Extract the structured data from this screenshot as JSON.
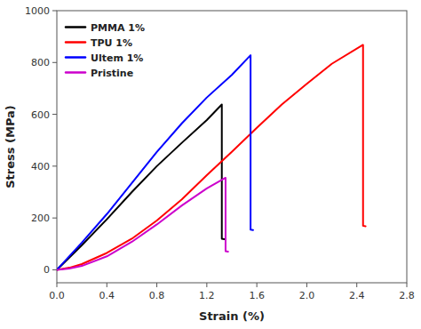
{
  "chart_data": {
    "type": "line",
    "xlabel": "Strain (%)",
    "ylabel": "Stress (MPa)",
    "series": [
      {
        "name": "PMMA 1%",
        "color": "#000000",
        "x": [
          0.0,
          0.2,
          0.4,
          0.6,
          0.8,
          1.0,
          1.2,
          1.32,
          1.32,
          1.34
        ],
        "values": [
          0,
          95,
          195,
          300,
          400,
          490,
          578,
          638,
          120,
          118
        ]
      },
      {
        "name": "TPU 1%",
        "color": "#ff0000",
        "x": [
          0.0,
          0.1,
          0.2,
          0.4,
          0.6,
          0.8,
          1.0,
          1.2,
          1.4,
          1.6,
          1.8,
          2.0,
          2.2,
          2.45,
          2.45,
          2.47
        ],
        "values": [
          0,
          8,
          22,
          65,
          120,
          190,
          272,
          365,
          455,
          548,
          638,
          718,
          795,
          868,
          170,
          168
        ]
      },
      {
        "name": "Ultem 1%",
        "color": "#0000ff",
        "x": [
          0.0,
          0.2,
          0.4,
          0.6,
          0.8,
          1.0,
          1.2,
          1.4,
          1.55,
          1.55,
          1.57
        ],
        "values": [
          0,
          105,
          215,
          335,
          455,
          565,
          665,
          752,
          828,
          155,
          153
        ]
      },
      {
        "name": "Pristine",
        "color": "#cc00cc",
        "x": [
          0.0,
          0.1,
          0.2,
          0.4,
          0.6,
          0.8,
          1.0,
          1.2,
          1.35,
          1.35,
          1.37
        ],
        "values": [
          0,
          5,
          15,
          52,
          108,
          175,
          248,
          314,
          355,
          72,
          70
        ]
      }
    ],
    "xlim": [
      0.0,
      2.8
    ],
    "ylim": [
      -50,
      1000
    ],
    "xticks": [
      {
        "value": 0.0,
        "label": "0.0"
      },
      0.4,
      0.8,
      1.2,
      1.6,
      {
        "value": 2.0,
        "label": "2.0"
      },
      2.4,
      2.8
    ],
    "yticks": [
      0,
      200,
      400,
      600,
      800,
      1000
    ],
    "legend": "upper left",
    "grid": false
  }
}
